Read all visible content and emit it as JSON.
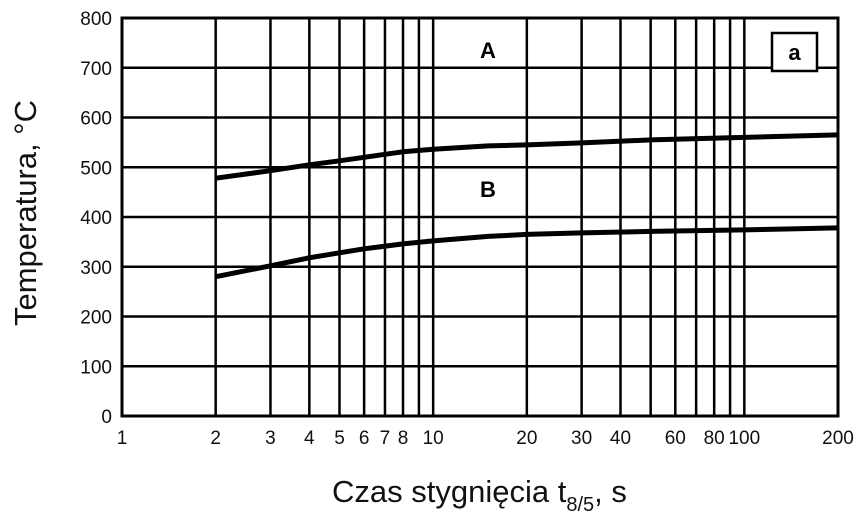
{
  "chart_data": {
    "type": "line",
    "title": "",
    "panel_tag": "a",
    "xlabel": {
      "main": "Czas stygnięcia t",
      "subscript": "8/5",
      "suffix": ", s"
    },
    "ylabel": "Temperatura, °C",
    "x_scale": "log",
    "xlim": [
      1,
      200
    ],
    "ylim": [
      0,
      800
    ],
    "grid": true,
    "x_ticks": [
      1,
      2,
      3,
      4,
      5,
      6,
      7,
      8,
      10,
      20,
      30,
      40,
      60,
      80,
      100,
      200
    ],
    "x_tick_labels": [
      "1",
      "2",
      "3",
      "4",
      "5",
      "6",
      "7",
      "8",
      "10",
      "20",
      "30",
      "40",
      "60",
      "80",
      "100",
      "200"
    ],
    "x_gridlines": [
      2,
      3,
      4,
      5,
      6,
      7,
      8,
      9,
      10,
      20,
      30,
      40,
      50,
      60,
      70,
      80,
      90,
      100,
      200
    ],
    "y_ticks": [
      0,
      100,
      200,
      300,
      400,
      500,
      600,
      700,
      800
    ],
    "y_tick_labels": [
      "0",
      "100",
      "200",
      "300",
      "400",
      "500",
      "600",
      "700",
      "800"
    ],
    "region_labels": [
      {
        "text": "A",
        "x": 15,
        "y": 720
      },
      {
        "text": "B",
        "x": 15,
        "y": 440
      }
    ],
    "series": [
      {
        "x": [
          2,
          3,
          4,
          5,
          6,
          8,
          10,
          15,
          20,
          30,
          50,
          100,
          200
        ],
        "values": [
          478,
          493,
          505,
          513,
          520,
          531,
          536,
          543,
          545,
          549,
          555,
          560,
          565
        ]
      },
      {
        "x": [
          2,
          3,
          4,
          5,
          6,
          8,
          10,
          15,
          20,
          30,
          50,
          100,
          200
        ],
        "values": [
          280,
          302,
          318,
          328,
          336,
          346,
          352,
          361,
          365,
          368,
          371,
          374,
          378
        ]
      }
    ]
  }
}
